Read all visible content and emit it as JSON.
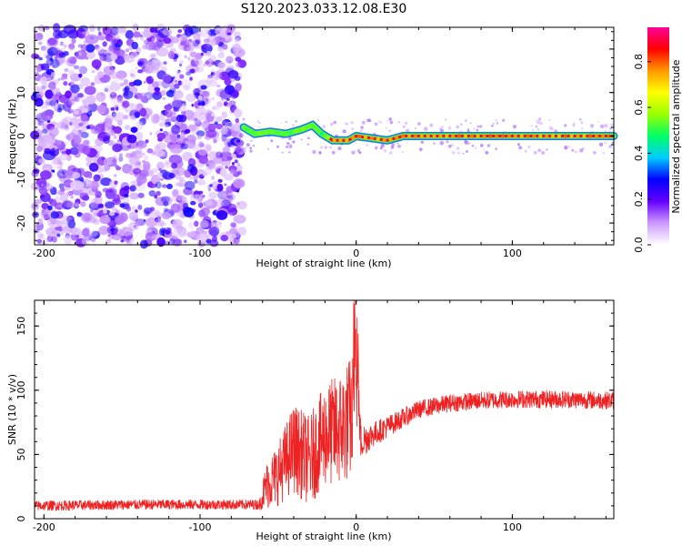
{
  "title": "S120.2023.033.12.08.E30",
  "chart_data": [
    {
      "type": "heatmap",
      "xlabel": "Height of straight line (km)",
      "ylabel": "Frequency (Hz)",
      "xlim": [
        -206,
        165
      ],
      "ylim": [
        -25,
        25
      ],
      "xticks": [
        -200,
        -100,
        0,
        100
      ],
      "yticks": [
        -20,
        -10,
        0,
        10,
        20
      ],
      "colorbar": {
        "label": "Normalized spectral amplitude",
        "range": [
          0,
          0.95
        ],
        "ticks": [
          0.0,
          0.2,
          0.4,
          0.6,
          0.8
        ],
        "colormap": [
          "#ffffff",
          "#cc99ff",
          "#6600ff",
          "#0000ff",
          "#00ccff",
          "#00ff66",
          "#99ff00",
          "#ffff00",
          "#ff9900",
          "#ff0000",
          "#ff0099"
        ]
      },
      "ridge": {
        "description_points_x": [
          -72,
          -65,
          -55,
          -45,
          -35,
          -28,
          -22,
          -15,
          -5,
          0,
          10,
          20,
          30,
          50,
          80,
          100,
          130,
          165
        ],
        "frequency_hz": [
          2.0,
          0.5,
          1.0,
          0.5,
          1.5,
          2.5,
          0.5,
          -1.0,
          -1.0,
          0.0,
          -0.5,
          -1.0,
          0.0,
          0.0,
          0.0,
          0.0,
          0.0,
          0.0
        ]
      },
      "noise_region_x": [
        -206,
        -73
      ]
    },
    {
      "type": "line",
      "xlabel": "Height of straight line (km)",
      "ylabel": "SNR (10 * v/v)",
      "xlim": [
        -206,
        165
      ],
      "ylim": [
        0,
        170
      ],
      "xticks": [
        -200,
        -100,
        0,
        100
      ],
      "yticks": [
        0,
        50,
        100,
        150
      ],
      "series": [
        {
          "color": "#ee2222",
          "envelope_x": [
            -206,
            -140,
            -62,
            -58,
            -50,
            -40,
            -30,
            -20,
            -10,
            -2,
            0,
            3,
            10,
            25,
            40,
            60,
            80,
            100,
            130,
            165
          ],
          "envelope_y": [
            10,
            11,
            11,
            25,
            35,
            55,
            45,
            65,
            70,
            80,
            110,
            60,
            65,
            75,
            85,
            90,
            92,
            93,
            93,
            92
          ],
          "spread_y": [
            4,
            4,
            4,
            18,
            25,
            35,
            35,
            40,
            45,
            50,
            40,
            15,
            10,
            8,
            7,
            7,
            7,
            7,
            7,
            7
          ]
        }
      ]
    }
  ]
}
